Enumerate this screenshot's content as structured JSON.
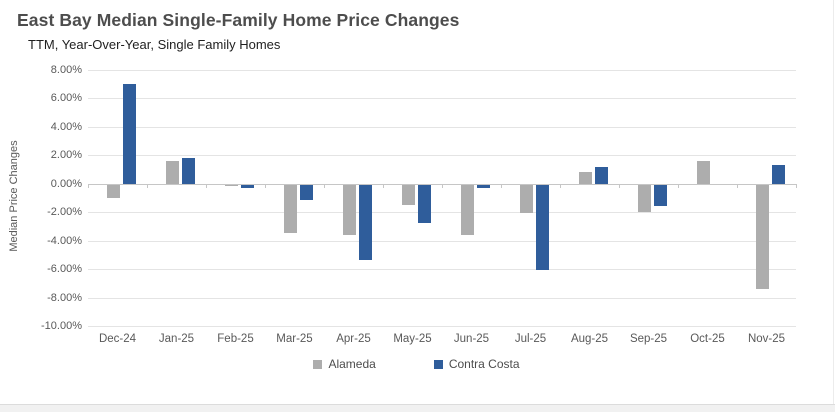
{
  "header": {
    "title": "East Bay Median Single-Family Home Price Changes",
    "subtitle": "TTM, Year-Over-Year, Single Family Homes"
  },
  "chart_data": {
    "type": "bar",
    "title": "East Bay Median Single-Family Home Price Changes",
    "subtitle": "TTM, Year-Over-Year, Single Family Homes",
    "xlabel": "",
    "ylabel": "Median Price Changes",
    "ylim": [
      -10,
      8
    ],
    "ytick_step": 2,
    "ytick_labels": [
      "8.00%",
      "6.00%",
      "4.00%",
      "2.00%",
      "0.00%",
      "-2.00%",
      "-4.00%",
      "-6.00%",
      "-8.00%",
      "-10.00%"
    ],
    "grid": true,
    "legend_position": "bottom",
    "categories": [
      "Dec-24",
      "Jan-25",
      "Feb-25",
      "Mar-25",
      "Apr-25",
      "May-25",
      "Jun-25",
      "Jul-25",
      "Aug-25",
      "Sep-25",
      "Oct-25",
      "Nov-25"
    ],
    "series": [
      {
        "name": "Alameda",
        "color": "#ADADAD",
        "values": [
          -0.9,
          1.6,
          -0.1,
          -3.4,
          -3.5,
          -1.4,
          -3.5,
          -2.0,
          0.8,
          -1.9,
          1.6,
          -7.3
        ]
      },
      {
        "name": "Contra Costa",
        "color": "#2F5D9B",
        "values": [
          7.0,
          1.8,
          -0.2,
          -1.1,
          -5.3,
          -2.7,
          -0.2,
          -6.0,
          1.2,
          -1.5,
          0.0,
          1.3
        ]
      }
    ]
  },
  "colors": {
    "title_text": "#4d4d4d",
    "axis_text": "#595959",
    "gridline": "#e4e4e4",
    "zero_line": "#c6c6c6",
    "alameda_bar": "#ADADAD",
    "contra_costa_bar": "#2F5D9B"
  }
}
